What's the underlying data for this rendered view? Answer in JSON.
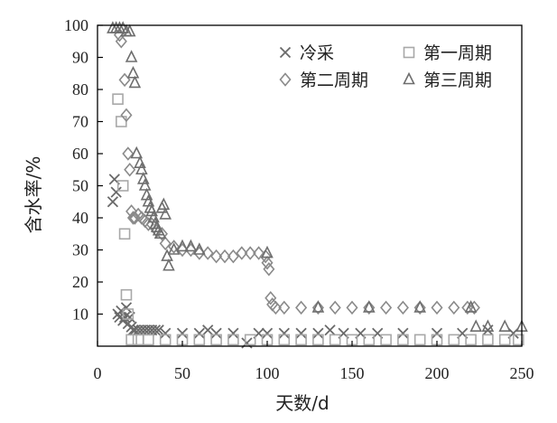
{
  "chart_data": {
    "type": "scatter",
    "xlabel": "天数/d",
    "ylabel": "含水率/%",
    "xlim": [
      0,
      250
    ],
    "ylim": [
      0,
      100
    ],
    "xticks": [
      0,
      50,
      100,
      150,
      200,
      250
    ],
    "yticks": [
      10,
      20,
      30,
      40,
      50,
      60,
      70,
      80,
      90,
      100
    ],
    "grid": false,
    "legend_position": "top-right",
    "series": [
      {
        "name": "冷采",
        "marker": "x",
        "color": "#6a6a6a",
        "x": [
          9,
          10,
          11,
          12,
          13,
          14,
          15,
          16,
          17,
          18,
          19,
          20,
          21,
          22,
          24,
          26,
          28,
          30,
          32,
          34,
          36,
          40,
          50,
          60,
          65,
          70,
          80,
          88,
          95,
          100,
          110,
          120,
          130,
          137,
          145,
          155,
          165,
          180,
          200,
          215,
          230,
          245
        ],
        "y": [
          45,
          52,
          48,
          10,
          9,
          11,
          8,
          9,
          12,
          7,
          9,
          6,
          5,
          5,
          5,
          5,
          5,
          5,
          5,
          5,
          5,
          4,
          4,
          4,
          5,
          4,
          4,
          1,
          4,
          4,
          4,
          4,
          4,
          5,
          4,
          4,
          4,
          4,
          4,
          4,
          5,
          4
        ]
      },
      {
        "name": "第一周期",
        "marker": "square",
        "color": "#a8a8a8",
        "x": [
          12,
          14,
          15,
          16,
          17,
          18,
          20,
          24,
          30,
          40,
          50,
          60,
          70,
          80,
          90,
          100,
          110,
          120,
          130,
          140,
          150,
          160,
          170,
          180,
          190,
          200,
          210,
          220,
          230,
          240,
          248
        ],
        "y": [
          77,
          70,
          50,
          35,
          16,
          10,
          2,
          2,
          2,
          2,
          2,
          2,
          2,
          2,
          2,
          2,
          2,
          2,
          2,
          2,
          2,
          2,
          2,
          2,
          2,
          2,
          2,
          2,
          2,
          2,
          2
        ]
      },
      {
        "name": "第二周期",
        "marker": "diamond",
        "color": "#8a8a8a",
        "x": [
          13,
          14,
          16,
          17,
          18,
          19,
          20,
          21,
          22,
          24,
          26,
          28,
          30,
          32,
          35,
          38,
          40,
          45,
          50,
          55,
          60,
          65,
          70,
          75,
          80,
          85,
          90,
          95,
          99,
          100,
          101,
          102,
          103,
          105,
          110,
          120,
          130,
          140,
          150,
          160,
          170,
          180,
          190,
          200,
          210,
          218,
          222
        ],
        "y": [
          97,
          95,
          83,
          72,
          60,
          55,
          42,
          40,
          40,
          41,
          40,
          39,
          38,
          38,
          36,
          35,
          32,
          31,
          30,
          30,
          29,
          29,
          28,
          28,
          28,
          29,
          29,
          29,
          28,
          26,
          24,
          15,
          13,
          12,
          12,
          12,
          12,
          12,
          12,
          12,
          12,
          12,
          12,
          12,
          12,
          12,
          12
        ]
      },
      {
        "name": "第三周期",
        "marker": "triangle",
        "color": "#6e6e6e",
        "x": [
          9,
          11,
          13,
          15,
          17,
          19,
          20,
          21,
          22,
          23,
          25,
          26,
          27,
          28,
          29,
          30,
          31,
          32,
          33,
          34,
          35,
          36,
          37,
          38,
          39,
          40,
          41,
          42,
          45,
          50,
          55,
          60,
          100,
          130,
          160,
          190,
          220,
          223,
          230,
          240,
          250
        ],
        "y": [
          99,
          99,
          99,
          99,
          98,
          98,
          90,
          85,
          82,
          60,
          57,
          55,
          52,
          50,
          47,
          45,
          43,
          42,
          40,
          38,
          37,
          36,
          35,
          43,
          44,
          41,
          28,
          25,
          30,
          31,
          31,
          30,
          29,
          12,
          12,
          12,
          12,
          6,
          6,
          6,
          6
        ]
      }
    ]
  }
}
